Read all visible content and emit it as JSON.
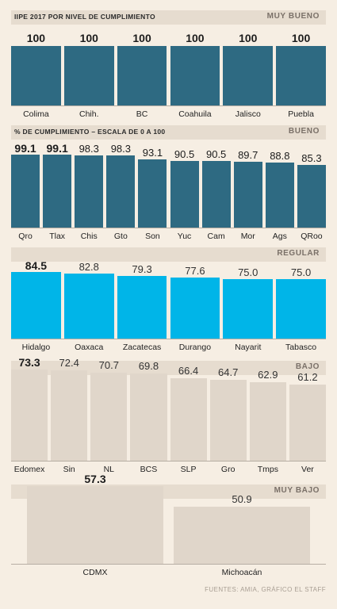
{
  "colors": {
    "background": "#f6eee3",
    "header_band": "#e6dccf",
    "muy_bueno": "#2e6a82",
    "bueno": "#2e6a82",
    "regular": "#00b5e8",
    "bajo": "#e0d6ca",
    "muy_bajo": "#e0d6ca"
  },
  "footer": "FUENTES: AMIA, GRÁFICO EL STAFF",
  "chart_data": [
    {
      "type": "bar",
      "title": "IIPE 2017 POR NIVEL DE CUMPLIMIENTO",
      "group": "MUY BUENO",
      "categories": [
        "Colima",
        "Chih.",
        "BC",
        "Coahuila",
        "Jalisco",
        "Puebla"
      ],
      "values": [
        100,
        100,
        100,
        100,
        100,
        100
      ],
      "labels": [
        "100",
        "100",
        "100",
        "100",
        "100",
        "100"
      ],
      "bold_labels": [
        0,
        1,
        2,
        3,
        4,
        5
      ]
    },
    {
      "type": "bar",
      "title": "% DE CUMPLIMIENTO – ESCALA DE 0 A 100",
      "group": "BUENO",
      "categories": [
        "Qro",
        "Tlax",
        "Chis",
        "Gto",
        "Son",
        "Yuc",
        "Cam",
        "Mor",
        "Ags",
        "QRoo"
      ],
      "values": [
        99.1,
        99.1,
        98.3,
        98.3,
        93.1,
        90.5,
        90.5,
        89.7,
        88.8,
        85.3
      ],
      "labels": [
        "99.1",
        "99.1",
        "98.3",
        "98.3",
        "93.1",
        "90.5",
        "90.5",
        "89.7",
        "88.8",
        "85.3"
      ],
      "bold_labels": [
        0,
        1
      ]
    },
    {
      "type": "bar",
      "title": "",
      "group": "REGULAR",
      "categories": [
        "Hidalgo",
        "Oaxaca",
        "Zacatecas",
        "Durango",
        "Nayarit",
        "Tabasco"
      ],
      "values": [
        84.5,
        82.8,
        79.3,
        77.6,
        75.0,
        75.0
      ],
      "labels": [
        "84.5",
        "82.8",
        "79.3",
        "77.6",
        "75.0",
        "75.0"
      ],
      "bold_labels": [
        0
      ]
    },
    {
      "type": "bar",
      "title": "",
      "group": "BAJO",
      "categories": [
        "Edomex",
        "Sin",
        "NL",
        "BCS",
        "SLP",
        "Gro",
        "Tmps",
        "Ver"
      ],
      "values": [
        73.3,
        72.4,
        70.7,
        69.8,
        66.4,
        64.7,
        62.9,
        61.2
      ],
      "labels": [
        "73.3",
        "72.4",
        "70.7",
        "69.8",
        "66.4",
        "64.7",
        "62.9",
        "61.2"
      ],
      "bold_labels": [
        0
      ]
    },
    {
      "type": "bar",
      "title": "",
      "group": "MUY BAJO",
      "categories": [
        "CDMX",
        "Michoacán"
      ],
      "values": [
        57.3,
        50.9
      ],
      "labels": [
        "57.3",
        "50.9"
      ],
      "bold_labels": [
        0
      ]
    }
  ]
}
